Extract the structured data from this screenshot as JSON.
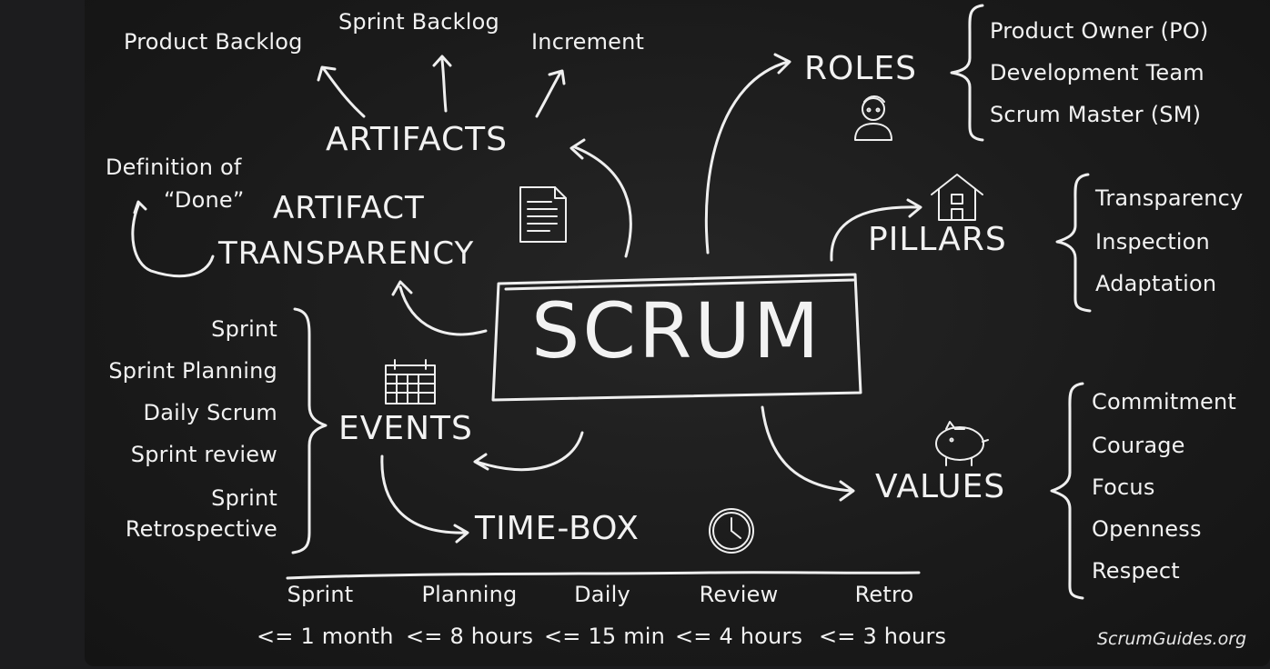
{
  "title": "SCRUM",
  "artifacts": {
    "heading": "ARTIFACTS",
    "items": [
      "Product Backlog",
      "Sprint Backlog",
      "Increment"
    ]
  },
  "artifact_transparency": {
    "line1": "ARTIFACT",
    "line2": "TRANSPARENCY",
    "dod_line1": "Definition of",
    "dod_line2": "“Done”"
  },
  "roles": {
    "heading": "ROLES",
    "items": [
      "Product Owner (PO)",
      "Development Team",
      "Scrum Master (SM)"
    ]
  },
  "pillars": {
    "heading": "PILLARS",
    "items": [
      "Transparency",
      "Inspection",
      "Adaptation"
    ]
  },
  "events": {
    "heading": "EVENTS",
    "items": [
      "Sprint",
      "Sprint Planning",
      "Daily Scrum",
      "Sprint review",
      "Sprint",
      "Retrospective"
    ]
  },
  "values": {
    "heading": "VALUES",
    "items": [
      "Commitment",
      "Courage",
      "Focus",
      "Openness",
      "Respect"
    ]
  },
  "timebox": {
    "heading": "TIME-BOX",
    "columns": [
      {
        "label": "Sprint",
        "limit": "<= 1 month"
      },
      {
        "label": "Planning",
        "limit": "<= 8 hours"
      },
      {
        "label": "Daily",
        "limit": "<= 15 min"
      },
      {
        "label": "Review",
        "limit": "<= 4 hours"
      },
      {
        "label": "Retro",
        "limit": "<= 3 hours"
      }
    ]
  },
  "credit": "ScrumGuides.org",
  "icons": {
    "document": "document-icon",
    "person": "person-icon",
    "house": "house-icon",
    "calendar": "calendar-icon",
    "piggy_bank": "piggy-bank-icon",
    "clock": "clock-icon"
  },
  "colors": {
    "chalkboard": "#1c1c1c",
    "chalk": "#f2f2f2"
  }
}
